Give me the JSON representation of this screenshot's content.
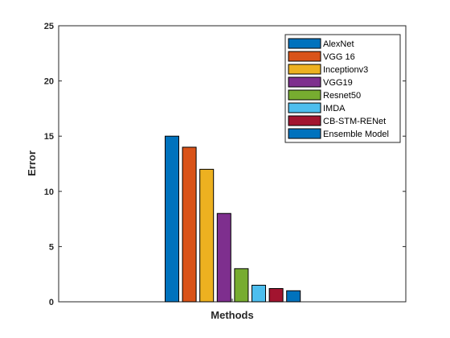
{
  "chart_data": {
    "type": "bar",
    "xlabel": "Methods",
    "ylabel": "Error",
    "ylim": [
      0,
      25
    ],
    "yticks": [
      "0",
      "5",
      "10",
      "15",
      "20",
      "25"
    ],
    "grid": false,
    "legend_position": "top-right",
    "series": [
      {
        "name": "AlexNet",
        "value": 15,
        "color": "#0072BD"
      },
      {
        "name": "VGG 16",
        "value": 14,
        "color": "#D95319"
      },
      {
        "name": "Inceptionv3",
        "value": 12,
        "color": "#EDB120"
      },
      {
        "name": "VGG19",
        "value": 8,
        "color": "#7E2F8E"
      },
      {
        "name": "Resnet50",
        "value": 3,
        "color": "#77AC30"
      },
      {
        "name": "IMDA",
        "value": 1.5,
        "color": "#4DBEEE"
      },
      {
        "name": " CB-STM-RENet",
        "value": 1.2,
        "color": "#A2142F"
      },
      {
        "name": "Ensemble Model",
        "value": 1,
        "color": "#0072BD"
      }
    ]
  }
}
